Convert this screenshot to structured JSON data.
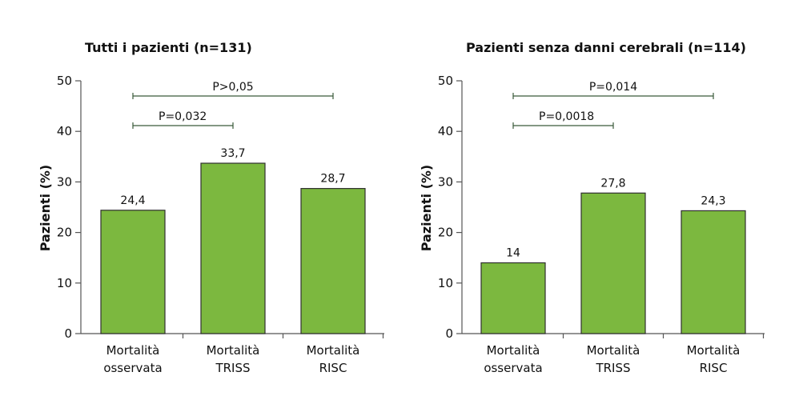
{
  "chart_data": [
    {
      "type": "bar",
      "title": "Tutti i pazienti (n=131)",
      "ylabel": "Pazienti (%)",
      "ylim": [
        0,
        50
      ],
      "yticks": [
        "0",
        "10",
        "20",
        "30",
        "40",
        "50"
      ],
      "categories": [
        [
          "Mortalità",
          "osservata"
        ],
        [
          "Mortalità",
          "TRISS"
        ],
        [
          "Mortalità",
          "RISC"
        ]
      ],
      "values": [
        24.4,
        33.7,
        28.7
      ],
      "value_labels": [
        "24,4",
        "33,7",
        "28,7"
      ],
      "comparisons": [
        {
          "label": "P>0,05",
          "from": 0,
          "to": 2
        },
        {
          "label": "P=0,032",
          "from": 0,
          "to": 1
        }
      ],
      "bar_color": "#7cb83f"
    },
    {
      "type": "bar",
      "title": "Pazienti senza danni cerebrali (n=114)",
      "ylabel": "Pazienti (%)",
      "ylim": [
        0,
        50
      ],
      "yticks": [
        "0",
        "10",
        "20",
        "30",
        "40",
        "50"
      ],
      "categories": [
        [
          "Mortalità",
          "osservata"
        ],
        [
          "Mortalità",
          "TRISS"
        ],
        [
          "Mortalità",
          "RISC"
        ]
      ],
      "values": [
        14,
        27.8,
        24.3
      ],
      "value_labels": [
        "14",
        "27,8",
        "24,3"
      ],
      "comparisons": [
        {
          "label": "P=0,014",
          "from": 0,
          "to": 2
        },
        {
          "label": "P=0,0018",
          "from": 0,
          "to": 1
        }
      ],
      "bar_color": "#7cb83f"
    }
  ]
}
